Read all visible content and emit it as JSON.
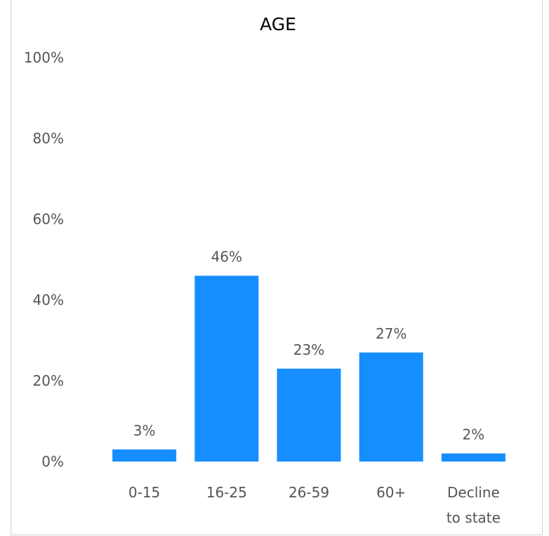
{
  "chart_data": {
    "type": "bar",
    "title": "AGE",
    "xlabel": "",
    "ylabel": "",
    "categories": [
      [
        "0-15"
      ],
      [
        "16-25"
      ],
      [
        "26-59"
      ],
      [
        "60+"
      ],
      [
        "Decline",
        "to state"
      ]
    ],
    "values": [
      3,
      46,
      23,
      27,
      2
    ],
    "value_labels": [
      "3%",
      "46%",
      "23%",
      "27%",
      "2%"
    ],
    "ylim": [
      0,
      100
    ],
    "y_ticks": [
      0,
      20,
      40,
      60,
      80,
      100
    ],
    "y_tick_labels": [
      "0%",
      "20%",
      "40%",
      "60%",
      "80%",
      "100%"
    ],
    "bar_color": "#168EFF",
    "grid": false,
    "legend": "none"
  }
}
